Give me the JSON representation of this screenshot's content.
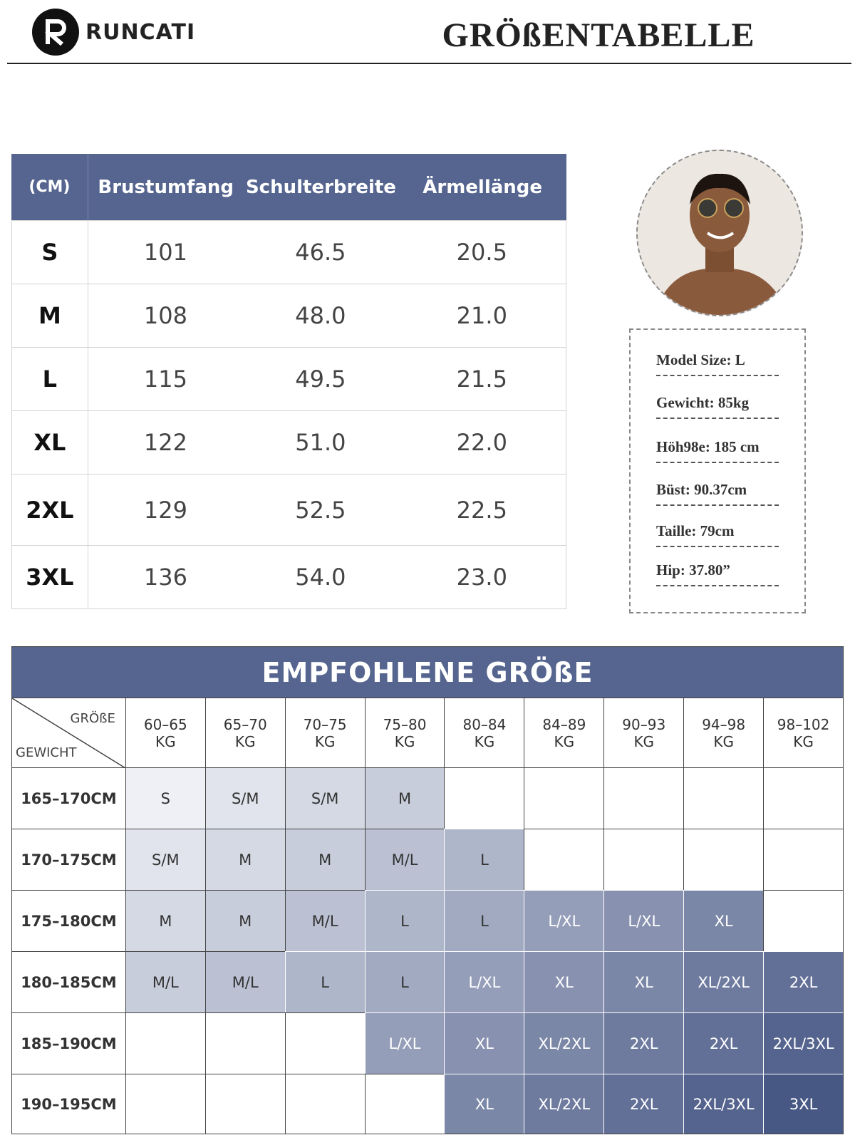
{
  "header": {
    "brand": "RUNCATI",
    "title": "GRÖßENTABELLE"
  },
  "size_table": {
    "columns": [
      "(CM)",
      "Brustumfang",
      "Schulterbreite",
      "Ärmellänge"
    ],
    "rows": [
      [
        "S",
        "101",
        "46.5",
        "20.5"
      ],
      [
        "M",
        "108",
        "48.0",
        "21.0"
      ],
      [
        "L",
        "115",
        "49.5",
        "21.5"
      ],
      [
        "XL",
        "122",
        "51.0",
        "22.0"
      ],
      [
        "2XL",
        "129",
        "52.5",
        "22.5"
      ],
      [
        "3XL",
        "136",
        "54.0",
        "23.0"
      ]
    ]
  },
  "model_info": [
    "Model Size: L",
    "Gewicht: 85kg",
    "Höh98e: 185 cm",
    "Büst: 90.37cm",
    "Taille: 79cm",
    "Hip: 37.80”"
  ],
  "recommendation": {
    "title": "EMPFOHLENE GRÖßE",
    "corner": {
      "top": "GRÖßE",
      "bottom": "GEWICHT"
    },
    "columns": [
      {
        "range": "60–65",
        "unit": "KG"
      },
      {
        "range": "65–70",
        "unit": "KG"
      },
      {
        "range": "70–75",
        "unit": "KG"
      },
      {
        "range": "75–80",
        "unit": "KG"
      },
      {
        "range": "80–84",
        "unit": "KG"
      },
      {
        "range": "84–89",
        "unit": "KG"
      },
      {
        "range": "90–93",
        "unit": "KG"
      },
      {
        "range": "94–98",
        "unit": "KG"
      },
      {
        "range": "98–102",
        "unit": "KG"
      }
    ],
    "rows": [
      {
        "label": "165–170CM",
        "cells": [
          "S",
          "S/M",
          "S/M",
          "M",
          null,
          null,
          null,
          null,
          null
        ]
      },
      {
        "label": "170–175CM",
        "cells": [
          "S/M",
          "M",
          "M",
          "M/L",
          "L",
          null,
          null,
          null,
          null
        ]
      },
      {
        "label": "175–180CM",
        "cells": [
          "M",
          "M",
          "M/L",
          "L",
          "L",
          "L/XL",
          "L/XL",
          "XL",
          null
        ]
      },
      {
        "label": "180–185CM",
        "cells": [
          "M/L",
          "M/L",
          "L",
          "L",
          "L/XL",
          "XL",
          "XL",
          "XL/2XL",
          "2XL"
        ]
      },
      {
        "label": "185–190CM",
        "cells": [
          null,
          null,
          null,
          "L/XL",
          "XL",
          "XL/2XL",
          "2XL",
          "2XL",
          "2XL/3XL"
        ]
      },
      {
        "label": "190–195CM",
        "cells": [
          null,
          null,
          null,
          null,
          "XL",
          "XL/2XL",
          "2XL",
          "2XL/3XL",
          "3XL"
        ]
      }
    ]
  }
}
